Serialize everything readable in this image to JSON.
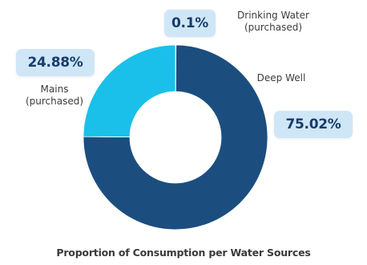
{
  "chart_data": {
    "type": "pie",
    "title": "Proportion of Consumption per Water Sources",
    "hole": true,
    "slices": [
      {
        "name": "Deep Well",
        "value": 75.02,
        "percent_label": "75.02%",
        "label_lines": [
          "Deep Well"
        ],
        "color": "#1b4e7f"
      },
      {
        "name": "Mains (purchased)",
        "value": 24.88,
        "percent_label": "24.88%",
        "label_lines": [
          "Mains",
          "(purchased)"
        ],
        "color": "#1ac0ea"
      },
      {
        "name": "Drinking Water (purchased)",
        "value": 0.1,
        "percent_label": "0.1%",
        "label_lines": [
          "Drinking Water",
          "(purchased)"
        ],
        "color": "#5aa9d6"
      }
    ]
  },
  "colors": {
    "badge_background": "#cfe6f7",
    "badge_text": "#173c6b",
    "label_text": "#3c3c3c"
  }
}
